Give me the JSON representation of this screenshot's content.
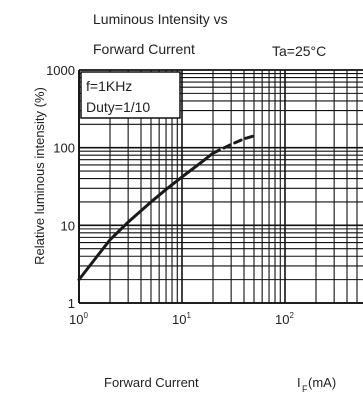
{
  "chart_data": {
    "type": "line",
    "title": [
      "Luminous Intensity vs",
      "Forward Current"
    ],
    "condition": "Ta=25°C",
    "xlabel": "Forward Current",
    "xunit": "I",
    "xunit_sub": "F",
    "xunit_suffix": "(mA)",
    "ylabel": "Relative luminous intensity  (%)",
    "x_scale": "log",
    "y_scale": "log",
    "xlim": [
      1,
      100
    ],
    "ylim": [
      1,
      1000
    ],
    "x_ticks": [
      {
        "value": 1,
        "base": "10",
        "exp": "0"
      },
      {
        "value": 10,
        "base": "10",
        "exp": "1"
      },
      {
        "value": 100,
        "base": "10",
        "exp": "2"
      }
    ],
    "y_ticks": [
      {
        "value": 1,
        "label": "1"
      },
      {
        "value": 10,
        "label": "10"
      },
      {
        "value": 100,
        "label": "100"
      },
      {
        "value": 1000,
        "label": "1000"
      }
    ],
    "legend_box": [
      "f=1KHz",
      "Duty=1/10"
    ],
    "grid": true,
    "series": [
      {
        "style": "solid",
        "color": "#1a1a1a",
        "x": [
          1,
          1.5,
          2,
          3,
          5,
          7,
          10,
          15,
          20
        ],
        "y": [
          2,
          4,
          6.5,
          11,
          20,
          29,
          42,
          63,
          85
        ]
      },
      {
        "style": "dashed",
        "color": "#1a1a1a",
        "x": [
          20,
          30,
          40,
          50
        ],
        "y": [
          85,
          110,
          130,
          142
        ]
      }
    ]
  }
}
